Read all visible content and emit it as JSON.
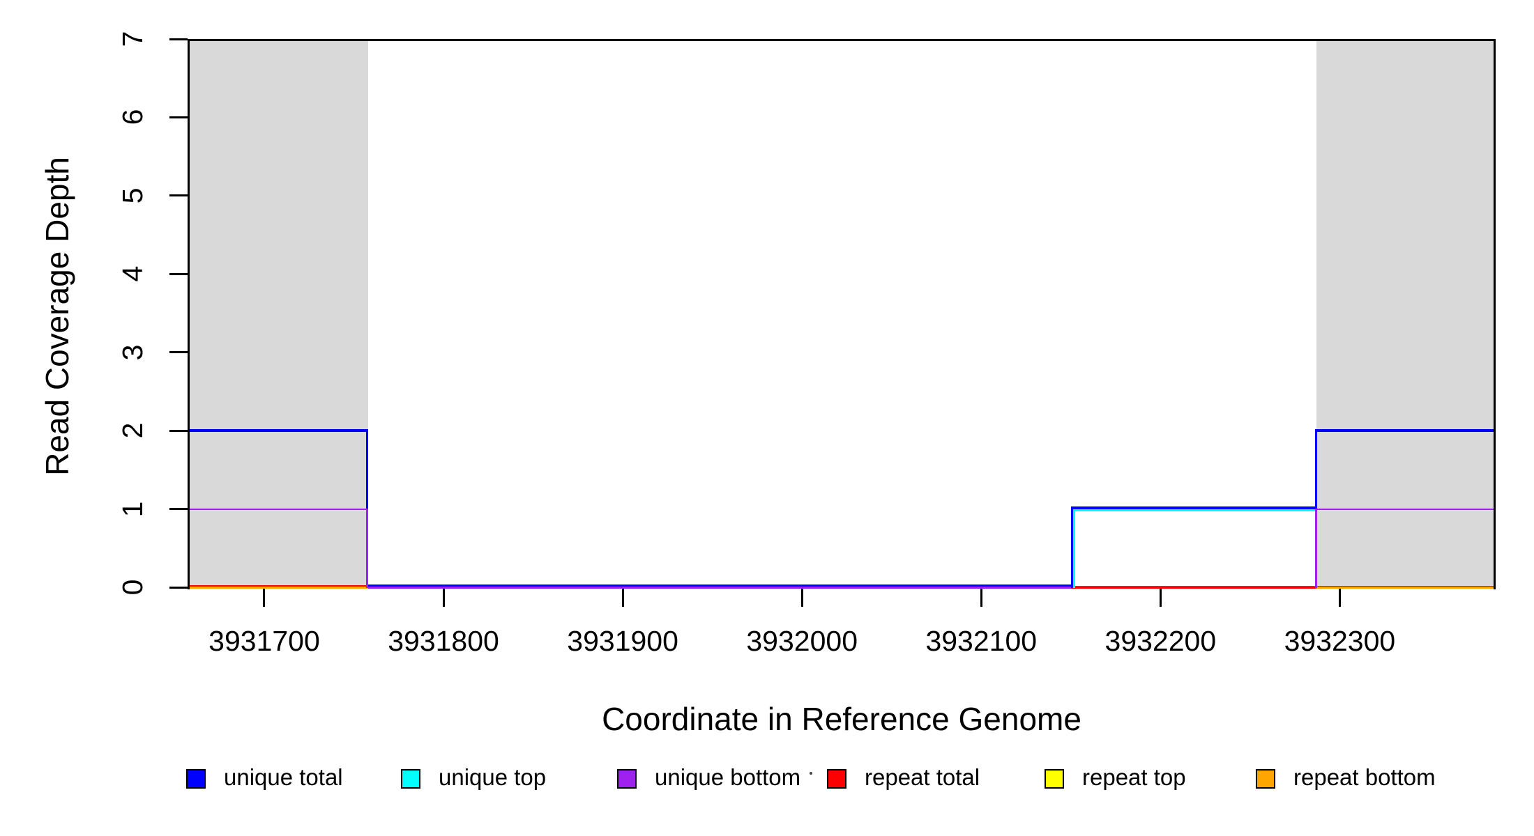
{
  "figure": {
    "background": "#FFFFFF",
    "plot_border_color": "#000000",
    "repeat_region_color": "#D9D9D9"
  },
  "y_axis": {
    "label": "Read Coverage Depth",
    "ticks": [
      0,
      1,
      2,
      3,
      4,
      5,
      6,
      7
    ],
    "range": [
      0,
      7
    ]
  },
  "x_axis": {
    "label": "Coordinate in Reference Genome",
    "ticks": [
      3931700,
      3931800,
      3931900,
      3932000,
      3932100,
      3932200,
      3932300
    ],
    "range": [
      3931658,
      3932386
    ]
  },
  "legend": {
    "items": [
      {
        "label": "unique total",
        "color": "#0000FF"
      },
      {
        "label": "unique top",
        "color": "#00FFFF"
      },
      {
        "label": "unique bottom",
        "color": "#A020F0"
      },
      {
        "label": "repeat total",
        "color": "#FF0000"
      },
      {
        "label": "repeat top",
        "color": "#FFFF00"
      },
      {
        "label": "repeat bottom",
        "color": "#FFA500"
      }
    ],
    "stray_mark": "·"
  },
  "chart_data": {
    "type": "line",
    "subtype": "step-coverage",
    "title": "",
    "xlabel": "Coordinate in Reference Genome",
    "ylabel": "Read Coverage Depth",
    "xlim": [
      3931658,
      3932386
    ],
    "ylim": [
      0,
      7
    ],
    "x_ticks": [
      3931700,
      3931800,
      3931900,
      3932000,
      3932100,
      3932200,
      3932300
    ],
    "y_ticks": [
      0,
      1,
      2,
      3,
      4,
      5,
      6,
      7
    ],
    "grid": false,
    "legend_position": "bottom",
    "shaded_repeat_regions": [
      {
        "from": 3931658,
        "to": 3931758
      },
      {
        "from": 3932287,
        "to": 3932386
      }
    ],
    "breakpoints": {
      "xmin": 3931658,
      "region1_end": 3931758,
      "step_up": 3932150,
      "region2_start": 3932287,
      "xmax": 3932386
    },
    "series": [
      {
        "name": "unique total",
        "color": "#0000FF",
        "steps": [
          {
            "from": 3931658,
            "to": 3931758,
            "depth": 2
          },
          {
            "from": 3931758,
            "to": 3932150,
            "depth": 0
          },
          {
            "from": 3932150,
            "to": 3932287,
            "depth": 1
          },
          {
            "from": 3932287,
            "to": 3932386,
            "depth": 2
          }
        ]
      },
      {
        "name": "unique top",
        "color": "#00FFFF",
        "steps": [
          {
            "from": 3931658,
            "to": 3931758,
            "depth": 1
          },
          {
            "from": 3931758,
            "to": 3932150,
            "depth": 0
          },
          {
            "from": 3932150,
            "to": 3932386,
            "depth": 1
          }
        ]
      },
      {
        "name": "unique bottom",
        "color": "#A020F0",
        "steps": [
          {
            "from": 3931658,
            "to": 3931758,
            "depth": 1
          },
          {
            "from": 3931758,
            "to": 3932287,
            "depth": 0
          },
          {
            "from": 3932287,
            "to": 3932386,
            "depth": 1
          }
        ]
      },
      {
        "name": "repeat total",
        "color": "#FF0000",
        "steps": [
          {
            "from": 3931658,
            "to": 3932386,
            "depth": 0
          }
        ]
      },
      {
        "name": "repeat top",
        "color": "#FFFF00",
        "steps": [
          {
            "from": 3931658,
            "to": 3932386,
            "depth": 0
          }
        ]
      },
      {
        "name": "repeat bottom",
        "color": "#FFA500",
        "steps": [
          {
            "from": 3931658,
            "to": 3932386,
            "depth": 0
          }
        ]
      }
    ],
    "baseline_top_color_by_interval": [
      {
        "from": 3931658,
        "to": 3931758,
        "series": "repeat bottom"
      },
      {
        "from": 3931758,
        "to": 3932150,
        "series": "unique bottom"
      },
      {
        "from": 3932150,
        "to": 3932287,
        "series": "repeat total"
      },
      {
        "from": 3932287,
        "to": 3932386,
        "series": "repeat bottom"
      }
    ]
  }
}
